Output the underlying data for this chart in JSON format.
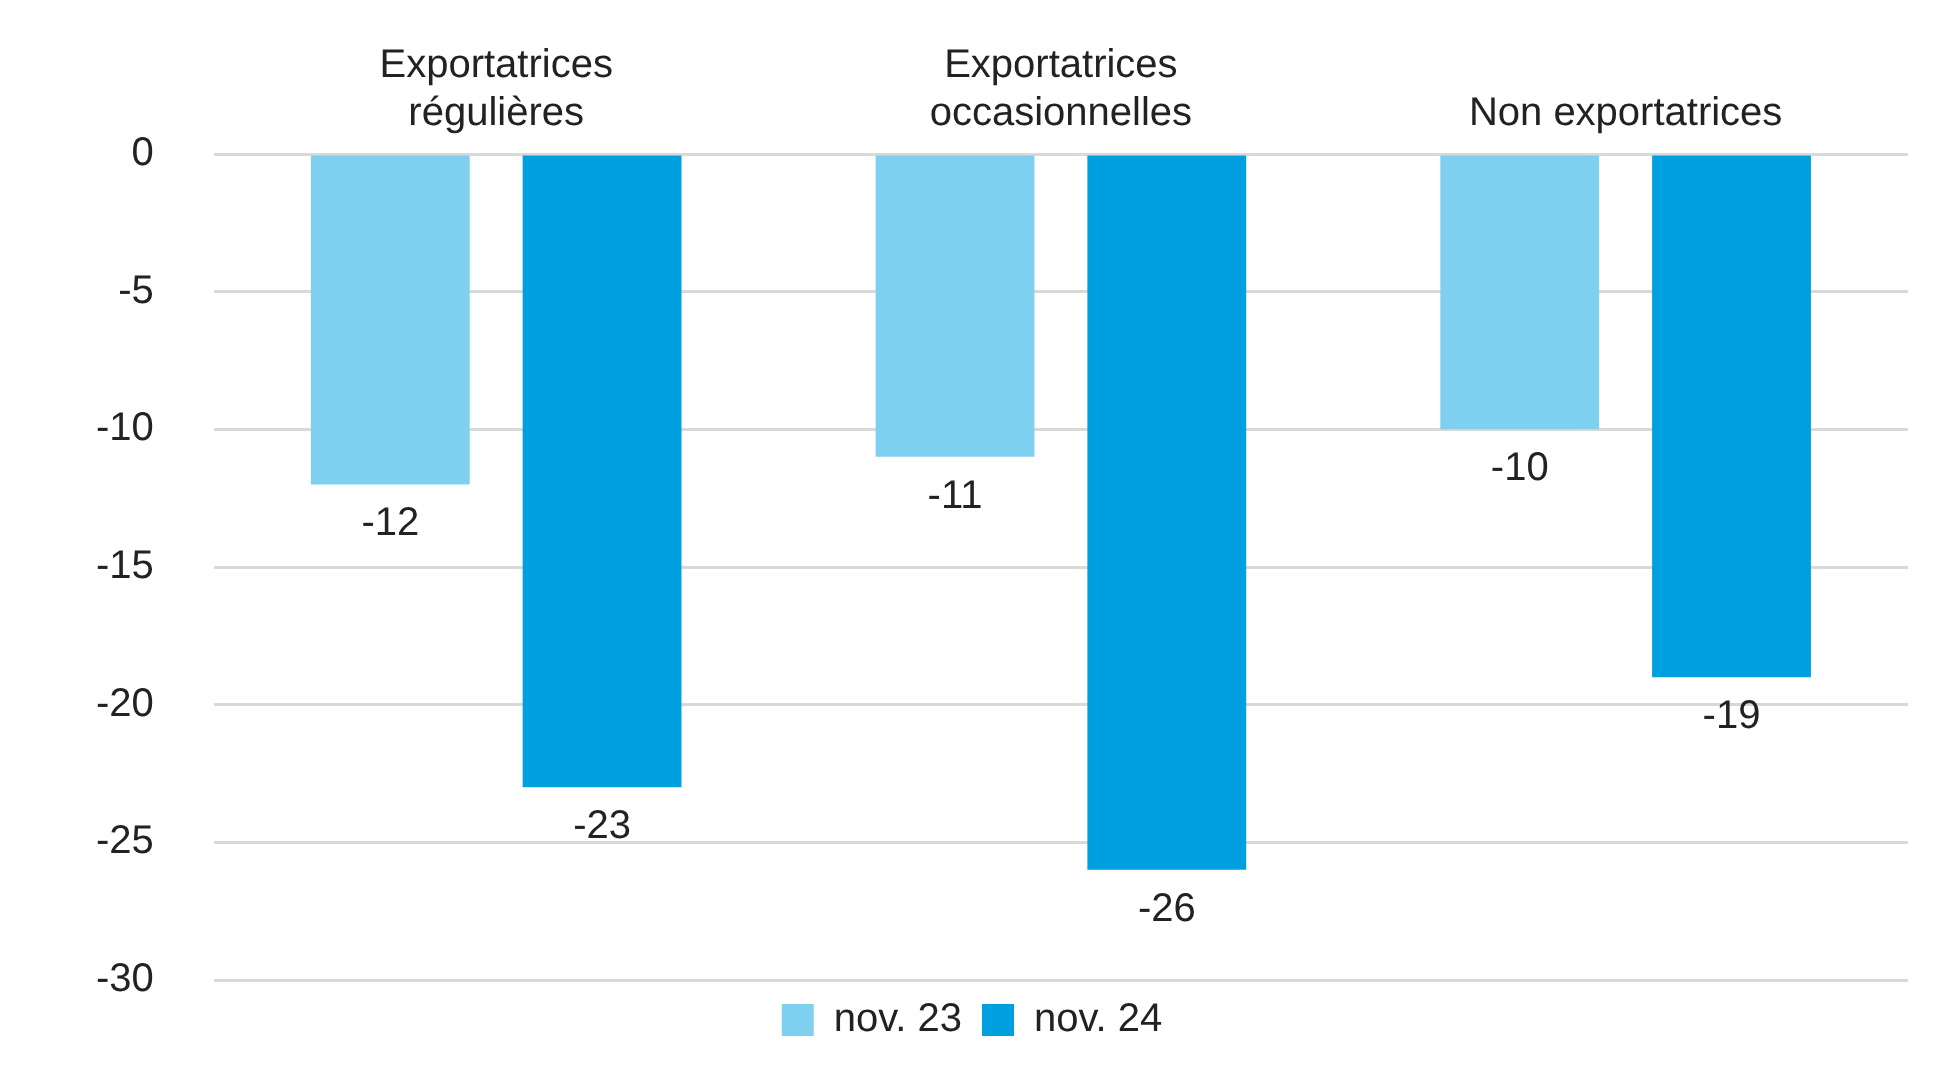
{
  "chart_data": {
    "type": "bar",
    "categories": [
      "Exportatrices régulières",
      "Exportatrices occasionnelles",
      "Non exportatrices"
    ],
    "series": [
      {
        "name": "nov. 23",
        "color": "#7fcfef",
        "values": [
          -12,
          -11,
          -10
        ]
      },
      {
        "name": "nov. 24",
        "color": "#009fdf",
        "values": [
          -23,
          -26,
          -19
        ]
      }
    ],
    "ylim": [
      -30,
      0
    ],
    "yticks": [
      0,
      -5,
      -10,
      -15,
      -20,
      -25,
      -30
    ],
    "grid": "y",
    "legend": "bottom",
    "data_labels": true
  }
}
